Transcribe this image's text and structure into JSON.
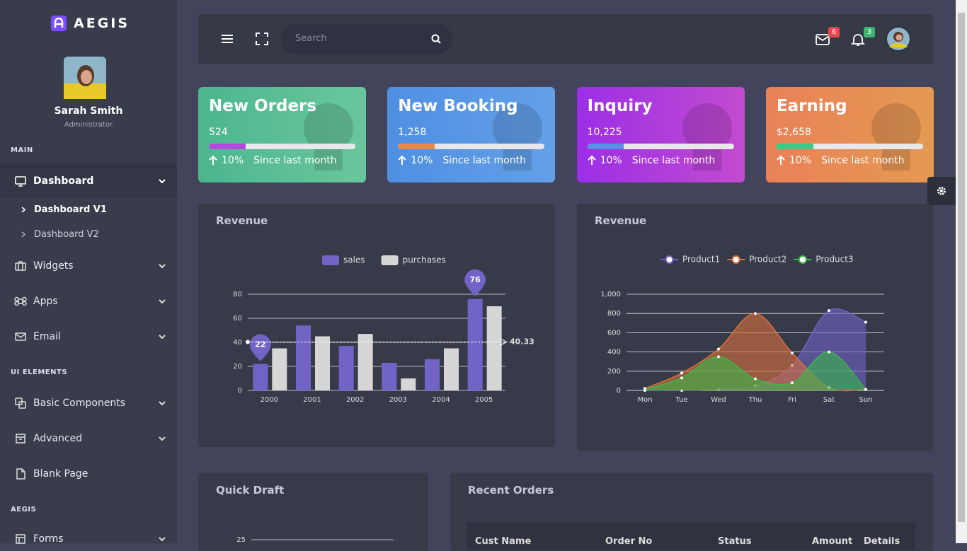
{
  "sidebar": {
    "brand": "AEGIS",
    "user": {
      "name": "Sarah Smith",
      "role": "Administrator"
    },
    "sections": [
      {
        "title": "MAIN",
        "items": [
          {
            "label": "Dashboard",
            "children": [
              "Dashboard V1",
              "Dashboard V2"
            ]
          },
          {
            "label": "Widgets"
          },
          {
            "label": "Apps"
          },
          {
            "label": "Email"
          }
        ]
      },
      {
        "title": "UI ELEMENTS",
        "items": [
          {
            "label": "Basic Components"
          },
          {
            "label": "Advanced"
          },
          {
            "label": "Blank Page"
          }
        ]
      },
      {
        "title": "AEGIS",
        "items": [
          {
            "label": "Forms"
          }
        ]
      }
    ]
  },
  "header": {
    "search_placeholder": "Search",
    "mail_count": 6,
    "notification_count": 3
  },
  "cards": [
    {
      "title": "New Orders",
      "value": "524",
      "change": "10%",
      "note": "Since last month",
      "progress": 25,
      "bar_color": "#b24ae0"
    },
    {
      "title": "New Booking",
      "value": "1,258",
      "change": "10%",
      "note": "Since last month",
      "progress": 25,
      "bar_color": "#e8894a"
    },
    {
      "title": "Inquiry",
      "value": "10,225",
      "change": "10%",
      "note": "Since last month",
      "progress": 25,
      "bar_color": "#5b8fe8"
    },
    {
      "title": "Earning",
      "value": "$2,658",
      "change": "10%",
      "note": "Since last month",
      "progress": 25,
      "bar_color": "#3fc88a"
    }
  ],
  "chart_data": [
    {
      "type": "bar",
      "title": "Revenue",
      "categories": [
        "2000",
        "2001",
        "2002",
        "2003",
        "2004",
        "2005"
      ],
      "series": [
        {
          "name": "sales",
          "color": "#7164c6",
          "values": [
            22,
            54,
            37,
            23,
            26,
            76
          ]
        },
        {
          "name": "purchases",
          "color": "#d6d6d6",
          "values": [
            35,
            45,
            47,
            10,
            35,
            70
          ]
        }
      ],
      "average": 40.33,
      "ylim": [
        0,
        80
      ],
      "yticks": [
        0,
        20,
        40,
        60,
        80
      ],
      "grid": true,
      "legend": "top"
    },
    {
      "type": "area",
      "title": "Revenue",
      "categories": [
        "Mon",
        "Tue",
        "Wed",
        "Thu",
        "Fri",
        "Sat",
        "Sun"
      ],
      "series": [
        {
          "name": "Product1",
          "color": "#6f62c4",
          "values": [
            0,
            0,
            10,
            50,
            260,
            830,
            710
          ]
        },
        {
          "name": "Product2",
          "color": "#d9703c",
          "values": [
            20,
            180,
            430,
            800,
            390,
            30,
            10
          ]
        },
        {
          "name": "Product3",
          "color": "#3bb84a",
          "values": [
            10,
            130,
            350,
            120,
            80,
            400,
            10
          ]
        }
      ],
      "ylim": [
        0,
        1000
      ],
      "yticks": [
        0,
        200,
        400,
        600,
        800,
        {
          "value": 1000,
          "label": "1,000"
        }
      ],
      "grid": true,
      "legend": "top"
    },
    {
      "type": "line",
      "title": "Quick Draft",
      "yticks": [
        25
      ],
      "grid": true
    }
  ],
  "table": {
    "title": "Recent Orders",
    "columns": [
      "Cust Name",
      "Order No",
      "Status",
      "Amount",
      "Details"
    ]
  }
}
